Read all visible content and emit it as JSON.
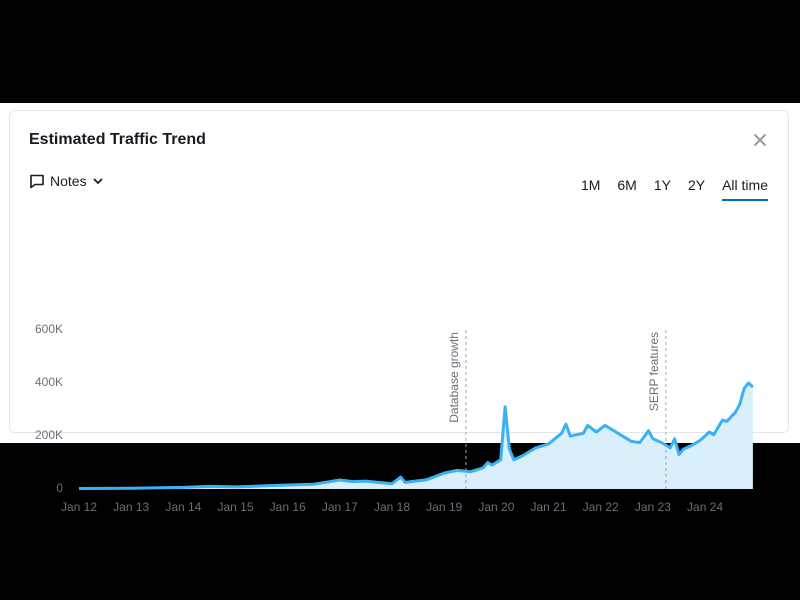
{
  "chart_data": {
    "type": "area",
    "title": "Estimated Traffic Trend",
    "notes_label": "Notes",
    "ranges": [
      "1M",
      "6M",
      "1Y",
      "2Y",
      "All time"
    ],
    "active_range": "All time",
    "color": "#3ab0f5",
    "fill": "#d9effc",
    "x": [
      "2012-01",
      "2013-01",
      "2014-01",
      "2014-07",
      "2015-01",
      "2016-01",
      "2016-07",
      "2017-01",
      "2017-04",
      "2017-07",
      "2018-01",
      "2018-03",
      "2018-04",
      "2018-09",
      "2019-01",
      "2019-04",
      "2019-07",
      "2019-10",
      "2019-11",
      "2019-12",
      "2020-02",
      "2020-03",
      "2020-04",
      "2020-05",
      "2020-07",
      "2020-10",
      "2021-01",
      "2021-04",
      "2021-05",
      "2021-06",
      "2021-09",
      "2021-10",
      "2021-12",
      "2022-02",
      "2022-05",
      "2022-08",
      "2022-10",
      "2022-12",
      "2023-01",
      "2023-03",
      "2023-05",
      "2023-06",
      "2023-07",
      "2023-08",
      "2023-10",
      "2023-12",
      "2024-02",
      "2024-03",
      "2024-05",
      "2024-06",
      "2024-08",
      "2024-09",
      "2024-10",
      "2024-11",
      "2024-12"
    ],
    "values": [
      2000,
      3000,
      6000,
      10000,
      8000,
      15000,
      18000,
      34000,
      28000,
      30000,
      20000,
      45000,
      25000,
      35000,
      60000,
      70000,
      65000,
      80000,
      100000,
      90000,
      110000,
      310000,
      150000,
      110000,
      125000,
      155000,
      170000,
      210000,
      245000,
      200000,
      210000,
      240000,
      215000,
      240000,
      210000,
      180000,
      175000,
      220000,
      190000,
      175000,
      155000,
      190000,
      130000,
      150000,
      165000,
      185000,
      215000,
      205000,
      260000,
      255000,
      290000,
      320000,
      380000,
      400000,
      385000
    ],
    "xlim": [
      "2012-01",
      "2024-12"
    ],
    "xticks": [
      {
        "value": "2012-01",
        "label": "Jan 12"
      },
      {
        "value": "2013-01",
        "label": "Jan 13"
      },
      {
        "value": "2014-01",
        "label": "Jan 14"
      },
      {
        "value": "2015-01",
        "label": "Jan 15"
      },
      {
        "value": "2016-01",
        "label": "Jan 16"
      },
      {
        "value": "2017-01",
        "label": "Jan 17"
      },
      {
        "value": "2018-01",
        "label": "Jan 18"
      },
      {
        "value": "2019-01",
        "label": "Jan 19"
      },
      {
        "value": "2020-01",
        "label": "Jan 20"
      },
      {
        "value": "2021-01",
        "label": "Jan 21"
      },
      {
        "value": "2022-01",
        "label": "Jan 22"
      },
      {
        "value": "2023-01",
        "label": "Jan 23"
      },
      {
        "value": "2024-01",
        "label": "Jan 24"
      }
    ],
    "ylim": [
      0,
      600000
    ],
    "yticks": [
      0,
      {
        "value": 200000,
        "label": "200K"
      },
      {
        "value": 400000,
        "label": "400K"
      },
      {
        "value": 600000,
        "label": "600K"
      }
    ],
    "annotations": [
      {
        "x": "2019-06",
        "label": "Database growth"
      },
      {
        "x": "2023-04",
        "label": "SERP features"
      }
    ]
  }
}
